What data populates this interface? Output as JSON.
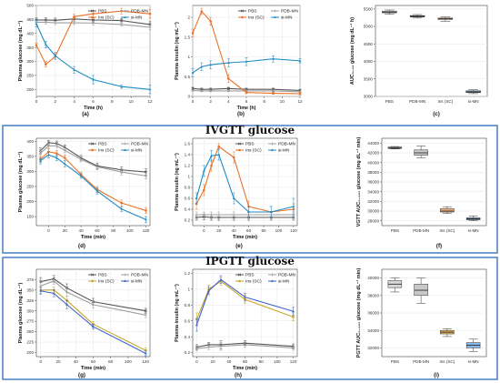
{
  "colors": {
    "PBS": "#555555",
    "PDB-MN": "#9e9e9e",
    "Ins (SC)": "#e8732a",
    "si-MN": "#1f8bc4",
    "insSC_ip": "#c9a42a",
    "siMN_ip": "#3e63c9",
    "frame": "#3a76c0"
  },
  "sections": {
    "iv": "IVGTT glucose",
    "ip": "IPGTT glucose"
  },
  "panels": {
    "a": "(a)",
    "b": "(b)",
    "c": "(c)",
    "d": "(d)",
    "e": "(e)",
    "f": "(f)",
    "g": "(g)",
    "h": "(h)",
    "i": "(i)"
  },
  "chart_data": [
    {
      "id": "a",
      "type": "line",
      "xlabel": "Time (h)",
      "ylabel": "Plasma glucose (mg dL⁻¹)",
      "xlim": [
        0,
        12
      ],
      "ylim": [
        175,
        500
      ],
      "xticks": [
        0,
        2,
        4,
        6,
        8,
        10,
        12
      ],
      "yticks": [
        200,
        250,
        300,
        350,
        400,
        450,
        500
      ],
      "legend": "top-right",
      "series": [
        {
          "name": "PBS",
          "x": [
            0,
            1,
            2,
            4,
            6,
            9,
            12
          ],
          "y": [
            448,
            448,
            447,
            452,
            448,
            446,
            432
          ],
          "err": [
            8,
            8,
            8,
            8,
            8,
            8,
            10
          ]
        },
        {
          "name": "PDB-MN",
          "x": [
            0,
            1,
            2,
            4,
            6,
            9,
            12
          ],
          "y": [
            440,
            440,
            438,
            438,
            437,
            432,
            422
          ],
          "err": [
            6,
            6,
            6,
            6,
            6,
            6,
            8
          ]
        },
        {
          "name": "Ins (SC)",
          "x": [
            0,
            1,
            2,
            4,
            6,
            9,
            12
          ],
          "y": [
            358,
            290,
            318,
            460,
            470,
            480,
            470
          ],
          "err": [
            8,
            10,
            10,
            8,
            12,
            10,
            15
          ]
        },
        {
          "name": "si-MN",
          "x": [
            0,
            1,
            2,
            4,
            6,
            9,
            12
          ],
          "y": [
            435,
            360,
            320,
            270,
            235,
            210,
            200
          ],
          "err": [
            12,
            12,
            12,
            12,
            15,
            6,
            15
          ]
        }
      ]
    },
    {
      "id": "b",
      "type": "line",
      "xlabel": "Time (h)",
      "ylabel": "Plasma insulin (ng mL⁻¹)",
      "xlim": [
        0,
        12
      ],
      "ylim": [
        0,
        2.3
      ],
      "xticks": [
        0,
        2,
        4,
        6,
        8,
        10,
        12
      ],
      "yticks": [
        0.0,
        0.5,
        1.0,
        1.5,
        2.0
      ],
      "legend": "top-right",
      "series": [
        {
          "name": "PBS",
          "x": [
            0,
            1,
            2,
            4,
            6,
            9,
            12
          ],
          "y": [
            0.2,
            0.18,
            0.18,
            0.2,
            0.18,
            0.18,
            0.15
          ],
          "err": [
            0.03,
            0.03,
            0.03,
            0.03,
            0.03,
            0.03,
            0.03
          ]
        },
        {
          "name": "PDB-MN",
          "x": [
            0,
            1,
            2,
            4,
            6,
            9,
            12
          ],
          "y": [
            0.15,
            0.14,
            0.14,
            0.14,
            0.14,
            0.14,
            0.12
          ],
          "err": [
            0.02,
            0.02,
            0.02,
            0.02,
            0.02,
            0.02,
            0.02
          ]
        },
        {
          "name": "Ins (SC)",
          "x": [
            0,
            1,
            2,
            4,
            6,
            9,
            12
          ],
          "y": [
            1.6,
            2.15,
            1.9,
            0.45,
            0.1,
            0.08,
            0.07
          ],
          "err": [
            0.1,
            0.08,
            0.1,
            0.1,
            0.03,
            0.03,
            0.03
          ]
        },
        {
          "name": "si-MN",
          "x": [
            0,
            1,
            2,
            4,
            6,
            9,
            12
          ],
          "y": [
            0.6,
            0.75,
            0.8,
            0.85,
            0.88,
            0.95,
            0.9
          ],
          "err": [
            0.1,
            0.1,
            0.1,
            0.1,
            0.1,
            0.08,
            0.05
          ]
        }
      ]
    },
    {
      "id": "c",
      "type": "box",
      "ylabel": "AUC₀₋₁₂ glucose (mg dL⁻¹ h)",
      "ylim": [
        3000,
        5600
      ],
      "yticks": [
        3000,
        3500,
        4000,
        4500,
        5000,
        5500
      ],
      "categories": [
        "PBS",
        "PDB-MN",
        "Ins (SC)",
        "si-MN"
      ],
      "boxes": [
        [
          5350,
          5390,
          5410,
          5440,
          5470
        ],
        [
          5240,
          5270,
          5290,
          5310,
          5340
        ],
        [
          5150,
          5200,
          5220,
          5240,
          5270
        ],
        [
          3080,
          3110,
          3130,
          3160,
          3190
        ]
      ]
    },
    {
      "id": "d",
      "type": "line",
      "xlabel": "Time (min)",
      "ylabel": "Plasma glucose (mg dL⁻¹)",
      "xlim": [
        -15,
        125
      ],
      "ylim": [
        120,
        410
      ],
      "xticks": [
        0,
        20,
        40,
        60,
        80,
        100,
        120
      ],
      "yticks": [
        150,
        200,
        250,
        300,
        350,
        400
      ],
      "legend": "top-right",
      "series": [
        {
          "name": "PBS",
          "x": [
            -10,
            0,
            10,
            20,
            40,
            60,
            90,
            120
          ],
          "y": [
            368,
            395,
            393,
            380,
            345,
            318,
            305,
            298
          ],
          "err": [
            10,
            8,
            8,
            8,
            8,
            10,
            10,
            10
          ]
        },
        {
          "name": "PDB-MN",
          "x": [
            -10,
            0,
            10,
            20,
            40,
            60,
            90,
            120
          ],
          "y": [
            360,
            385,
            385,
            370,
            340,
            315,
            298,
            285
          ],
          "err": [
            10,
            8,
            8,
            8,
            8,
            10,
            10,
            10
          ]
        },
        {
          "name": "Ins (SC)",
          "x": [
            -10,
            0,
            10,
            20,
            40,
            60,
            90,
            120
          ],
          "y": [
            340,
            365,
            360,
            345,
            290,
            240,
            195,
            170
          ],
          "err": [
            10,
            10,
            10,
            10,
            8,
            10,
            10,
            10
          ]
        },
        {
          "name": "si-MN",
          "x": [
            -10,
            0,
            10,
            20,
            40,
            60,
            90,
            120
          ],
          "y": [
            335,
            355,
            345,
            325,
            285,
            235,
            175,
            140
          ],
          "err": [
            10,
            10,
            10,
            10,
            8,
            10,
            8,
            10
          ]
        }
      ]
    },
    {
      "id": "e",
      "type": "line",
      "xlabel": "Time (min)",
      "ylabel": "Plasma insulin (ng mL⁻¹)",
      "xlim": [
        -15,
        125
      ],
      "ylim": [
        0.1,
        1.7
      ],
      "xticks": [
        0,
        20,
        40,
        60,
        80,
        100,
        120
      ],
      "yticks": [
        0.2,
        0.4,
        0.6,
        0.8,
        1.0,
        1.2,
        1.4,
        1.6
      ],
      "legend": "top-right",
      "series": [
        {
          "name": "PBS",
          "x": [
            -10,
            0,
            10,
            20,
            40,
            60,
            90,
            120
          ],
          "y": [
            0.25,
            0.26,
            0.25,
            0.25,
            0.25,
            0.25,
            0.25,
            0.25
          ],
          "err": [
            0.05,
            0.05,
            0.05,
            0.05,
            0.05,
            0.05,
            0.05,
            0.05
          ]
        },
        {
          "name": "PDB-MN",
          "x": [
            -10,
            0,
            10,
            20,
            40,
            60,
            90,
            120
          ],
          "y": [
            0.3,
            0.3,
            0.3,
            0.3,
            0.3,
            0.3,
            0.3,
            0.3
          ],
          "err": [
            0.05,
            0.05,
            0.05,
            0.05,
            0.05,
            0.05,
            0.05,
            0.05
          ]
        },
        {
          "name": "Ins (SC)",
          "x": [
            -10,
            0,
            10,
            20,
            40,
            60,
            90,
            120
          ],
          "y": [
            0.5,
            0.75,
            1.2,
            1.55,
            1.35,
            0.45,
            0.35,
            0.4
          ],
          "err": [
            0.1,
            0.1,
            0.1,
            0.05,
            0.1,
            0.1,
            0.1,
            0.1
          ]
        },
        {
          "name": "si-MN",
          "x": [
            -10,
            0,
            10,
            20,
            40,
            60,
            90,
            120
          ],
          "y": [
            0.6,
            1.1,
            1.38,
            1.4,
            0.6,
            0.35,
            0.35,
            0.45
          ],
          "err": [
            0.1,
            0.1,
            0.1,
            0.1,
            0.1,
            0.1,
            0.1,
            0.15
          ]
        }
      ]
    },
    {
      "id": "f",
      "type": "box",
      "ylabel": "VGTT AUC₀₋₁₂₀ glucose (mg dL⁻¹ min)",
      "ylim": [
        27000,
        45000
      ],
      "yticks": [
        28000,
        30000,
        32000,
        34000,
        36000,
        38000,
        40000,
        42000,
        44000
      ],
      "categories": [
        "PBS",
        "PDB-MN",
        "Ins (SC)",
        "si-MN"
      ],
      "boxes": [
        [
          42800,
          42900,
          43000,
          43200,
          43300
        ],
        [
          41000,
          41500,
          42000,
          42600,
          43400
        ],
        [
          29500,
          29800,
          30000,
          30500,
          30900
        ],
        [
          28000,
          28200,
          28400,
          28600,
          29000
        ]
      ]
    },
    {
      "id": "g",
      "type": "line",
      "xlabel": "Time (min)",
      "ylabel": "Plasma glucose (mg dL⁻¹)",
      "xlim": [
        -5,
        125
      ],
      "ylim": [
        190,
        400
      ],
      "xticks": [
        0,
        20,
        40,
        60,
        80,
        100,
        120
      ],
      "yticks": [
        200,
        225,
        250,
        275,
        300,
        325,
        350,
        375
      ],
      "legend": "top-right",
      "series": [
        {
          "name": "PBS",
          "x": [
            0,
            15,
            30,
            60,
            120
          ],
          "y": [
            370,
            377,
            355,
            322,
            300
          ],
          "err": [
            10,
            8,
            10,
            8,
            6
          ]
        },
        {
          "name": "PDB-MN",
          "x": [
            0,
            15,
            30,
            60,
            120
          ],
          "y": [
            360,
            372,
            345,
            315,
            290
          ],
          "err": [
            10,
            8,
            10,
            8,
            6
          ]
        },
        {
          "name": "Ins (SC)",
          "x": [
            0,
            15,
            30,
            60,
            120
          ],
          "y": [
            350,
            350,
            325,
            268,
            205
          ],
          "err": [
            8,
            8,
            10,
            6,
            6
          ]
        },
        {
          "name": "si-MN",
          "x": [
            0,
            15,
            30,
            60,
            120
          ],
          "y": [
            348,
            342,
            315,
            262,
            198
          ],
          "err": [
            8,
            8,
            10,
            6,
            6
          ]
        }
      ]
    },
    {
      "id": "h",
      "type": "line",
      "xlabel": "Time (min)",
      "ylabel": "Plasma insulin (ng mL⁻¹)",
      "xlim": [
        -5,
        125
      ],
      "ylim": [
        0.15,
        1.25
      ],
      "xticks": [
        0,
        20,
        40,
        60,
        80,
        100,
        120
      ],
      "yticks": [
        0.2,
        0.4,
        0.6,
        0.8,
        1.0,
        1.2
      ],
      "legend": "top-right",
      "series": [
        {
          "name": "PBS",
          "x": [
            0,
            15,
            30,
            60,
            120
          ],
          "y": [
            0.27,
            0.3,
            0.3,
            0.32,
            0.28
          ],
          "err": [
            0.03,
            0.03,
            0.05,
            0.03,
            0.03
          ]
        },
        {
          "name": "PDB-MN",
          "x": [
            0,
            15,
            30,
            60,
            120
          ],
          "y": [
            0.25,
            0.27,
            0.28,
            0.3,
            0.26
          ],
          "err": [
            0.03,
            0.03,
            0.05,
            0.03,
            0.03
          ]
        },
        {
          "name": "Ins (SC)",
          "x": [
            0,
            15,
            30,
            60,
            120
          ],
          "y": [
            0.62,
            1.0,
            1.1,
            0.87,
            0.65
          ],
          "err": [
            0.08,
            0.05,
            0.05,
            0.05,
            0.05
          ]
        },
        {
          "name": "si-MN",
          "x": [
            0,
            15,
            30,
            60,
            120
          ],
          "y": [
            0.55,
            0.98,
            1.12,
            0.9,
            0.72
          ],
          "err": [
            0.08,
            0.05,
            0.05,
            0.05,
            0.05
          ]
        }
      ]
    },
    {
      "id": "i",
      "type": "box",
      "ylabel": "PGTT AUC₀₋₁₂₀ glucose (mg dL⁻¹ min)",
      "ylim": [
        31000,
        41000
      ],
      "yticks": [
        32000,
        34000,
        36000,
        38000,
        40000
      ],
      "categories": [
        "PBS",
        "PDB-MN",
        "Ins (SC)",
        "si-MN"
      ],
      "boxes": [
        [
          38400,
          38900,
          39300,
          39700,
          40000
        ],
        [
          37100,
          38000,
          38600,
          39300,
          40000
        ],
        [
          33300,
          33600,
          33800,
          34000,
          34200
        ],
        [
          31600,
          32000,
          32300,
          32600,
          33000
        ]
      ]
    }
  ]
}
